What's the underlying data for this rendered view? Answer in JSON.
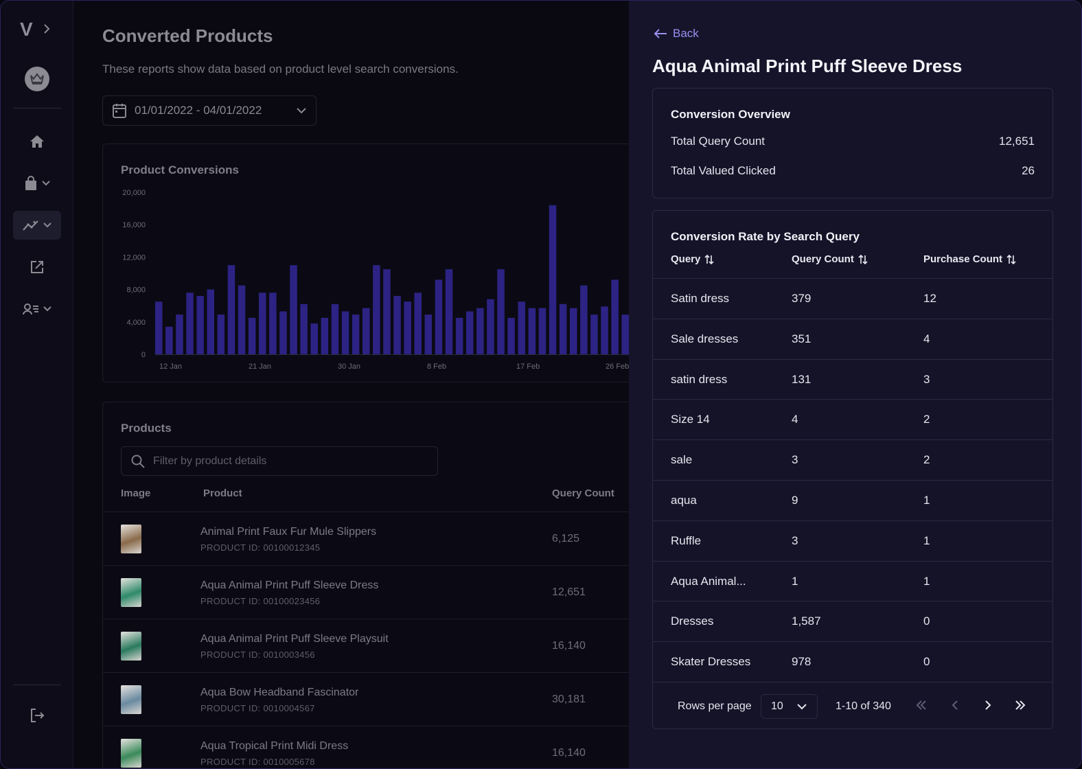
{
  "sidebar": {
    "logo": "V",
    "colors": {
      "icon": "#8c8b93"
    }
  },
  "main": {
    "title": "Converted Products",
    "subtitle": "These reports show data based on product level search conversions.",
    "date_range": "01/01/2022 - 04/01/2022",
    "chart_title": "Product Conversions",
    "products_title": "Products",
    "filter_placeholder": "Filter by product details",
    "columns": {
      "image": "Image",
      "product": "Product",
      "query_count": "Query Count"
    },
    "products": [
      {
        "name": "Animal Print Faux Fur Mule Slippers",
        "id": "PRODUCT ID: 00100012345",
        "query_count": "6,125",
        "thumb_color": "#8a6a4a"
      },
      {
        "name": "Aqua Animal Print Puff Sleeve Dress",
        "id": "PRODUCT ID: 00100023456",
        "query_count": "12,651",
        "thumb_color": "#2e8a6a"
      },
      {
        "name": "Aqua Animal Print Puff Sleeve Playsuit",
        "id": "PRODUCT ID: 0010003456",
        "query_count": "16,140",
        "thumb_color": "#2a7a5e"
      },
      {
        "name": "Aqua Bow Headband Fascinator",
        "id": "PRODUCT ID: 0010004567",
        "query_count": "30,181",
        "thumb_color": "#6a8aa0"
      },
      {
        "name": "Aqua Tropical Print Midi Dress",
        "id": "PRODUCT ID: 0010005678",
        "query_count": "16,140",
        "thumb_color": "#3a8a5a"
      }
    ]
  },
  "chart_data": {
    "type": "bar",
    "title": "Product Conversions",
    "xlabel": "",
    "ylabel": "",
    "ylim": [
      0,
      20000
    ],
    "yticks": [
      "0",
      "4,000",
      "8,000",
      "12,000",
      "16,000",
      "20,000"
    ],
    "xticks": [
      "12 Jan",
      "21 Jan",
      "30 Jan",
      "8 Feb",
      "17 Feb",
      "26 Feb"
    ],
    "values": [
      6500,
      3400,
      4900,
      7600,
      7200,
      8000,
      4900,
      11000,
      8500,
      4500,
      7600,
      7600,
      5300,
      11000,
      6200,
      3800,
      4500,
      6200,
      5300,
      4900,
      5700,
      11000,
      10500,
      7200,
      6500,
      7600,
      4900,
      9200,
      10500,
      4500,
      5300,
      5700,
      6800,
      10500,
      4500,
      6500,
      5700,
      5700,
      18400,
      6200,
      5700,
      8500,
      4900,
      5900,
      9200,
      4900
    ],
    "bar_color": "#2c2384"
  },
  "panel": {
    "back_label": "Back",
    "title": "Aqua Animal Print Puff Sleeve Dress",
    "overview": {
      "title": "Conversion Overview",
      "rows": [
        {
          "label": "Total Query Count",
          "value": "12,651"
        },
        {
          "label": "Total Valued Clicked",
          "value": "26"
        }
      ]
    },
    "rates": {
      "title": "Conversion Rate by Search Query",
      "columns": {
        "query": "Query",
        "query_count": "Query Count",
        "purchase_count": "Purchase Count"
      },
      "rows": [
        {
          "query": "Satin dress",
          "query_count": "379",
          "purchase_count": "12"
        },
        {
          "query": "Sale dresses",
          "query_count": "351",
          "purchase_count": "4"
        },
        {
          "query": "satin dress",
          "query_count": "131",
          "purchase_count": "3"
        },
        {
          "query": "Size 14",
          "query_count": "4",
          "purchase_count": "2"
        },
        {
          "query": "sale",
          "query_count": "3",
          "purchase_count": "2"
        },
        {
          "query": "aqua",
          "query_count": "9",
          "purchase_count": "1"
        },
        {
          "query": "Ruffle",
          "query_count": "3",
          "purchase_count": "1"
        },
        {
          "query": "Aqua Animal...",
          "query_count": "1",
          "purchase_count": "1"
        },
        {
          "query": "Dresses",
          "query_count": "1,587",
          "purchase_count": "0"
        },
        {
          "query": "Skater Dresses",
          "query_count": "978",
          "purchase_count": "0"
        }
      ],
      "pagination": {
        "rows_per_page_label": "Rows per page",
        "rows_per_page": "10",
        "range": "1-10 of 340"
      }
    },
    "colors": {
      "accent": "#9b8ff2",
      "background": "#15142a"
    }
  }
}
